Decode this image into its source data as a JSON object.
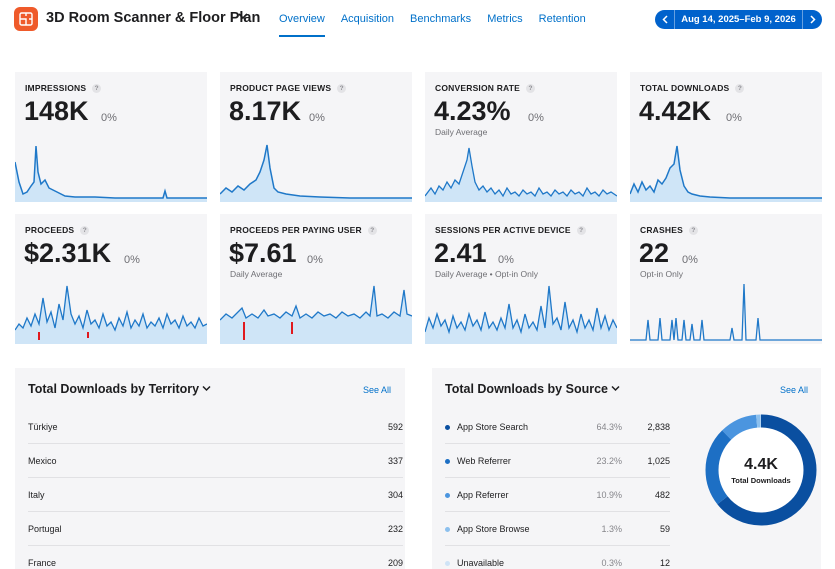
{
  "app": {
    "title": "3D Room Scanner & Floor Plan",
    "icon": "floor-plan-app-icon",
    "icon_color": "#ef5a2a"
  },
  "tabs": [
    {
      "label": "Overview",
      "active": true
    },
    {
      "label": "Acquisition",
      "active": false
    },
    {
      "label": "Benchmarks",
      "active": false
    },
    {
      "label": "Metrics",
      "active": false
    },
    {
      "label": "Retention",
      "active": false
    }
  ],
  "date_range": {
    "label": "Aug 14, 2025–Feb 9, 2026",
    "color": "#0062cc"
  },
  "colors": {
    "accent": "#0070c9",
    "chart_line": "#1f78c8",
    "chart_fill": "#cfe5f7",
    "alert": "#e0191e",
    "card_bg": "#f5f5f7"
  },
  "metrics": [
    {
      "title": "IMPRESSIONS",
      "value": "148K",
      "change": "0%",
      "sub": ""
    },
    {
      "title": "PRODUCT PAGE VIEWS",
      "value": "8.17K",
      "change": "0%",
      "sub": ""
    },
    {
      "title": "CONVERSION RATE",
      "value": "4.23%",
      "change": "0%",
      "sub": "Daily Average"
    },
    {
      "title": "TOTAL DOWNLOADS",
      "value": "4.42K",
      "change": "0%",
      "sub": ""
    },
    {
      "title": "PROCEEDS",
      "value": "$2.31K",
      "change": "0%",
      "sub": ""
    },
    {
      "title": "PROCEEDS PER PAYING USER",
      "value": "$7.61",
      "change": "0%",
      "sub": "Daily Average"
    },
    {
      "title": "SESSIONS PER ACTIVE DEVICE",
      "value": "2.41",
      "change": "0%",
      "sub": "Daily Average • Opt-in Only"
    },
    {
      "title": "CRASHES",
      "value": "22",
      "change": "0%",
      "sub": "Opt-in Only"
    }
  ],
  "territory": {
    "title": "Total Downloads by Territory",
    "see_all": "See All",
    "rows": [
      {
        "name": "Türkiye",
        "value": "592"
      },
      {
        "name": "Mexico",
        "value": "337"
      },
      {
        "name": "Italy",
        "value": "304"
      },
      {
        "name": "Portugal",
        "value": "232"
      },
      {
        "name": "France",
        "value": "209"
      }
    ]
  },
  "source": {
    "title": "Total Downloads by Source",
    "see_all": "See All",
    "total_value": "4.4K",
    "total_label": "Total Downloads",
    "rows": [
      {
        "name": "App Store Search",
        "pct": "64.3%",
        "value": "2,838",
        "color": "#0a4fa0"
      },
      {
        "name": "Web Referrer",
        "pct": "23.2%",
        "value": "1,025",
        "color": "#1d6fc4"
      },
      {
        "name": "App Referrer",
        "pct": "10.9%",
        "value": "482",
        "color": "#4b95df"
      },
      {
        "name": "App Store Browse",
        "pct": "1.3%",
        "value": "59",
        "color": "#8cc0ee"
      },
      {
        "name": "Unavailable",
        "pct": "0.3%",
        "value": "12",
        "color": "#cfe3f6"
      }
    ]
  }
}
